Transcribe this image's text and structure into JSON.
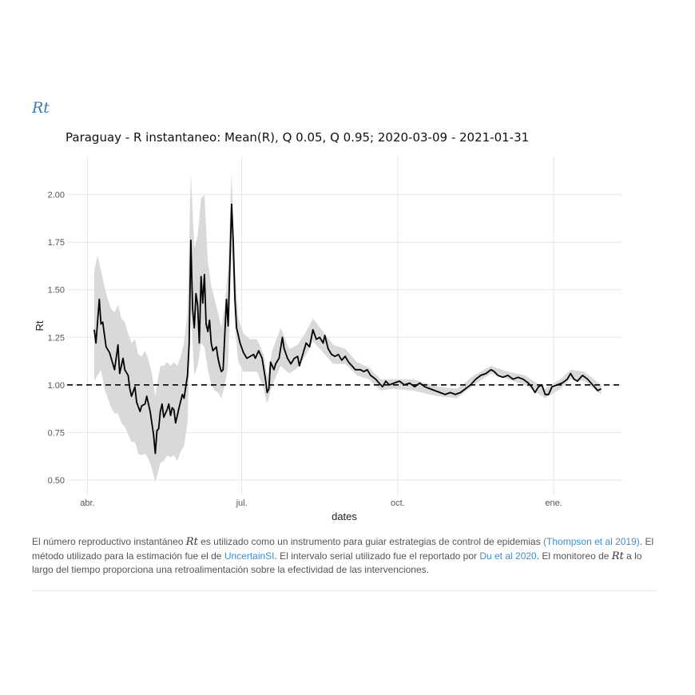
{
  "section_title": "Rt",
  "chart_data": {
    "type": "line",
    "title": "Paraguay - R instantaneo: Mean(R), Q 0.05, Q 0.95;  2020-03-09 - 2021-01-31",
    "xlabel": "dates",
    "ylabel": "Rt",
    "x_range": [
      "2020-03-20",
      "2021-02-10"
    ],
    "ylim": [
      0.42,
      2.2
    ],
    "y_ticks": [
      0.5,
      0.75,
      1.0,
      1.25,
      1.5,
      1.75,
      2.0
    ],
    "y_tick_labels": [
      "0.50",
      "0.75",
      "1.00",
      "1.25",
      "1.50",
      "1.75",
      "2.00"
    ],
    "x_ticks": [
      "2020-04-01",
      "2020-07-01",
      "2020-10-01",
      "2021-01-01"
    ],
    "x_tick_labels": [
      "abr.",
      "jul.",
      "oct.",
      "ene."
    ],
    "reference_line": {
      "y": 1.0,
      "style": "dashed",
      "color": "#000000"
    },
    "grid": true,
    "colors": {
      "line": "#000000",
      "band": "#d9d9d9"
    },
    "series": [
      {
        "role": "mean",
        "points": [
          [
            "2020-04-05",
            1.29
          ],
          [
            "2020-04-06",
            1.22
          ],
          [
            "2020-04-08",
            1.45
          ],
          [
            "2020-04-09",
            1.32
          ],
          [
            "2020-04-10",
            1.33
          ],
          [
            "2020-04-12",
            1.2
          ],
          [
            "2020-04-14",
            1.17
          ],
          [
            "2020-04-15",
            1.14
          ],
          [
            "2020-04-17",
            1.08
          ],
          [
            "2020-04-19",
            1.21
          ],
          [
            "2020-04-20",
            1.06
          ],
          [
            "2020-04-22",
            1.14
          ],
          [
            "2020-04-23",
            1.08
          ],
          [
            "2020-04-25",
            1.05
          ],
          [
            "2020-04-26",
            0.98
          ],
          [
            "2020-04-27",
            0.94
          ],
          [
            "2020-04-29",
            0.99
          ],
          [
            "2020-04-30",
            0.91
          ],
          [
            "2020-05-02",
            0.86
          ],
          [
            "2020-05-03",
            0.89
          ],
          [
            "2020-05-05",
            0.9
          ],
          [
            "2020-05-06",
            0.94
          ],
          [
            "2020-05-08",
            0.86
          ],
          [
            "2020-05-09",
            0.8
          ],
          [
            "2020-05-10",
            0.74
          ],
          [
            "2020-05-11",
            0.64
          ],
          [
            "2020-05-12",
            0.76
          ],
          [
            "2020-05-13",
            0.77
          ],
          [
            "2020-05-14",
            0.86
          ],
          [
            "2020-05-15",
            0.9
          ],
          [
            "2020-05-16",
            0.83
          ],
          [
            "2020-05-18",
            0.87
          ],
          [
            "2020-05-19",
            0.9
          ],
          [
            "2020-05-20",
            0.84
          ],
          [
            "2020-05-21",
            0.88
          ],
          [
            "2020-05-22",
            0.87
          ],
          [
            "2020-05-23",
            0.8
          ],
          [
            "2020-05-24",
            0.84
          ],
          [
            "2020-05-25",
            0.88
          ],
          [
            "2020-05-27",
            0.95
          ],
          [
            "2020-05-28",
            0.93
          ],
          [
            "2020-05-30",
            1.05
          ],
          [
            "2020-05-31",
            1.22
          ],
          [
            "2020-06-01",
            1.76
          ],
          [
            "2020-06-02",
            1.4
          ],
          [
            "2020-06-03",
            1.3
          ],
          [
            "2020-06-04",
            1.48
          ],
          [
            "2020-06-05",
            1.42
          ],
          [
            "2020-06-06",
            1.22
          ],
          [
            "2020-06-07",
            1.57
          ],
          [
            "2020-06-08",
            1.43
          ],
          [
            "2020-06-09",
            1.58
          ],
          [
            "2020-06-10",
            1.32
          ],
          [
            "2020-06-11",
            1.28
          ],
          [
            "2020-06-12",
            1.34
          ],
          [
            "2020-06-13",
            1.22
          ],
          [
            "2020-06-14",
            1.18
          ],
          [
            "2020-06-16",
            1.2
          ],
          [
            "2020-06-17",
            1.14
          ],
          [
            "2020-06-18",
            1.1
          ],
          [
            "2020-06-19",
            1.07
          ],
          [
            "2020-06-20",
            1.08
          ],
          [
            "2020-06-22",
            1.45
          ],
          [
            "2020-06-23",
            1.31
          ],
          [
            "2020-06-24",
            1.62
          ],
          [
            "2020-06-25",
            1.95
          ],
          [
            "2020-06-26",
            1.75
          ],
          [
            "2020-06-27",
            1.45
          ],
          [
            "2020-06-28",
            1.3
          ],
          [
            "2020-06-30",
            1.22
          ],
          [
            "2020-07-02",
            1.17
          ],
          [
            "2020-07-04",
            1.14
          ],
          [
            "2020-07-06",
            1.15
          ],
          [
            "2020-07-08",
            1.16
          ],
          [
            "2020-07-09",
            1.14
          ],
          [
            "2020-07-11",
            1.18
          ],
          [
            "2020-07-13",
            1.14
          ],
          [
            "2020-07-15",
            1.03
          ],
          [
            "2020-07-16",
            0.96
          ],
          [
            "2020-07-17",
            0.98
          ],
          [
            "2020-07-18",
            1.12
          ],
          [
            "2020-07-20",
            1.08
          ],
          [
            "2020-07-21",
            1.11
          ],
          [
            "2020-07-23",
            1.14
          ],
          [
            "2020-07-25",
            1.25
          ],
          [
            "2020-07-26",
            1.19
          ],
          [
            "2020-07-28",
            1.14
          ],
          [
            "2020-07-30",
            1.11
          ],
          [
            "2020-08-01",
            1.14
          ],
          [
            "2020-08-03",
            1.15
          ],
          [
            "2020-08-04",
            1.1
          ],
          [
            "2020-08-06",
            1.16
          ],
          [
            "2020-08-08",
            1.22
          ],
          [
            "2020-08-10",
            1.2
          ],
          [
            "2020-08-12",
            1.29
          ],
          [
            "2020-08-14",
            1.24
          ],
          [
            "2020-08-16",
            1.25
          ],
          [
            "2020-08-18",
            1.22
          ],
          [
            "2020-08-19",
            1.26
          ],
          [
            "2020-08-21",
            1.19
          ],
          [
            "2020-08-23",
            1.16
          ],
          [
            "2020-08-25",
            1.15
          ],
          [
            "2020-08-27",
            1.16
          ],
          [
            "2020-08-29",
            1.13
          ],
          [
            "2020-08-31",
            1.15
          ],
          [
            "2020-09-02",
            1.12
          ],
          [
            "2020-09-04",
            1.1
          ],
          [
            "2020-09-06",
            1.08
          ],
          [
            "2020-09-09",
            1.08
          ],
          [
            "2020-09-11",
            1.07
          ],
          [
            "2020-09-13",
            1.08
          ],
          [
            "2020-09-15",
            1.05
          ],
          [
            "2020-09-18",
            1.03
          ],
          [
            "2020-09-20",
            1.01
          ],
          [
            "2020-09-22",
            0.99
          ],
          [
            "2020-09-24",
            1.02
          ],
          [
            "2020-09-26",
            1.0
          ],
          [
            "2020-09-29",
            1.01
          ],
          [
            "2020-10-02",
            1.02
          ],
          [
            "2020-10-05",
            1.0
          ],
          [
            "2020-10-08",
            1.01
          ],
          [
            "2020-10-11",
            0.99
          ],
          [
            "2020-10-14",
            1.01
          ],
          [
            "2020-10-17",
            0.99
          ],
          [
            "2020-10-20",
            0.98
          ],
          [
            "2020-10-23",
            0.97
          ],
          [
            "2020-10-26",
            0.96
          ],
          [
            "2020-10-29",
            0.95
          ],
          [
            "2020-11-01",
            0.96
          ],
          [
            "2020-11-04",
            0.95
          ],
          [
            "2020-11-07",
            0.96
          ],
          [
            "2020-11-10",
            0.98
          ],
          [
            "2020-11-13",
            1.0
          ],
          [
            "2020-11-16",
            1.03
          ],
          [
            "2020-11-19",
            1.05
          ],
          [
            "2020-11-22",
            1.06
          ],
          [
            "2020-11-25",
            1.08
          ],
          [
            "2020-11-27",
            1.07
          ],
          [
            "2020-11-29",
            1.05
          ],
          [
            "2020-12-02",
            1.04
          ],
          [
            "2020-12-05",
            1.05
          ],
          [
            "2020-12-08",
            1.03
          ],
          [
            "2020-12-11",
            1.04
          ],
          [
            "2020-12-14",
            1.03
          ],
          [
            "2020-12-17",
            1.01
          ],
          [
            "2020-12-19",
            0.99
          ],
          [
            "2020-12-21",
            0.96
          ],
          [
            "2020-12-23",
            0.99
          ],
          [
            "2020-12-25",
            1.0
          ],
          [
            "2020-12-27",
            0.95
          ],
          [
            "2020-12-29",
            0.95
          ],
          [
            "2020-12-31",
            0.99
          ],
          [
            "2021-01-03",
            1.0
          ],
          [
            "2021-01-06",
            1.01
          ],
          [
            "2021-01-09",
            1.03
          ],
          [
            "2021-01-11",
            1.06
          ],
          [
            "2021-01-13",
            1.03
          ],
          [
            "2021-01-15",
            1.02
          ],
          [
            "2021-01-18",
            1.05
          ],
          [
            "2021-01-21",
            1.03
          ],
          [
            "2021-01-24",
            1.0
          ],
          [
            "2021-01-27",
            0.97
          ],
          [
            "2021-01-29",
            0.98
          ]
        ]
      },
      {
        "role": "band",
        "points": [
          [
            "2020-04-05",
            1.02,
            1.6
          ],
          [
            "2020-04-07",
            1.05,
            1.68
          ],
          [
            "2020-04-09",
            1.08,
            1.6
          ],
          [
            "2020-04-11",
            0.98,
            1.52
          ],
          [
            "2020-04-13",
            0.93,
            1.45
          ],
          [
            "2020-04-15",
            0.88,
            1.4
          ],
          [
            "2020-04-17",
            0.85,
            1.38
          ],
          [
            "2020-04-19",
            0.85,
            1.42
          ],
          [
            "2020-04-21",
            0.8,
            1.35
          ],
          [
            "2020-04-23",
            0.78,
            1.33
          ],
          [
            "2020-04-25",
            0.74,
            1.27
          ],
          [
            "2020-04-27",
            0.7,
            1.22
          ],
          [
            "2020-04-29",
            0.7,
            1.24
          ],
          [
            "2020-05-01",
            0.64,
            1.16
          ],
          [
            "2020-05-03",
            0.63,
            1.15
          ],
          [
            "2020-05-05",
            0.64,
            1.18
          ],
          [
            "2020-05-07",
            0.61,
            1.13
          ],
          [
            "2020-05-09",
            0.56,
            1.06
          ],
          [
            "2020-05-11",
            0.49,
            0.94
          ],
          [
            "2020-05-12",
            0.52,
            1.0
          ],
          [
            "2020-05-14",
            0.59,
            1.1
          ],
          [
            "2020-05-16",
            0.6,
            1.1
          ],
          [
            "2020-05-18",
            0.63,
            1.12
          ],
          [
            "2020-05-20",
            0.62,
            1.1
          ],
          [
            "2020-05-22",
            0.63,
            1.12
          ],
          [
            "2020-05-24",
            0.6,
            1.1
          ],
          [
            "2020-05-26",
            0.65,
            1.15
          ],
          [
            "2020-05-28",
            0.68,
            1.22
          ],
          [
            "2020-05-30",
            0.8,
            1.38
          ],
          [
            "2020-06-01",
            1.38,
            2.12
          ],
          [
            "2020-06-03",
            1.05,
            1.72
          ],
          [
            "2020-06-05",
            1.1,
            1.78
          ],
          [
            "2020-06-07",
            1.22,
            1.98
          ],
          [
            "2020-06-09",
            1.2,
            2.0
          ],
          [
            "2020-06-11",
            1.08,
            1.65
          ],
          [
            "2020-06-13",
            1.0,
            1.52
          ],
          [
            "2020-06-15",
            0.97,
            1.45
          ],
          [
            "2020-06-17",
            0.96,
            1.38
          ],
          [
            "2020-06-19",
            0.93,
            1.3
          ],
          [
            "2020-06-21",
            1.0,
            1.42
          ],
          [
            "2020-06-23",
            1.1,
            1.62
          ],
          [
            "2020-06-25",
            1.72,
            2.12
          ],
          [
            "2020-06-27",
            1.3,
            1.62
          ],
          [
            "2020-06-29",
            1.12,
            1.35
          ],
          [
            "2020-07-02",
            1.07,
            1.27
          ],
          [
            "2020-07-06",
            1.07,
            1.24
          ],
          [
            "2020-07-10",
            1.07,
            1.24
          ],
          [
            "2020-07-14",
            0.98,
            1.16
          ],
          [
            "2020-07-16",
            0.9,
            1.04
          ],
          [
            "2020-07-19",
            1.0,
            1.18
          ],
          [
            "2020-07-24",
            1.1,
            1.3
          ],
          [
            "2020-07-29",
            1.06,
            1.19
          ],
          [
            "2020-08-03",
            1.09,
            1.21
          ],
          [
            "2020-08-08",
            1.16,
            1.28
          ],
          [
            "2020-08-12",
            1.23,
            1.35
          ],
          [
            "2020-08-18",
            1.17,
            1.28
          ],
          [
            "2020-08-24",
            1.11,
            1.21
          ],
          [
            "2020-08-31",
            1.11,
            1.19
          ],
          [
            "2020-09-07",
            1.05,
            1.12
          ],
          [
            "2020-09-14",
            1.03,
            1.09
          ],
          [
            "2020-09-21",
            0.97,
            1.03
          ],
          [
            "2020-09-28",
            0.98,
            1.03
          ],
          [
            "2020-10-10",
            0.97,
            1.03
          ],
          [
            "2020-10-25",
            0.94,
            0.99
          ],
          [
            "2020-11-05",
            0.93,
            0.98
          ],
          [
            "2020-11-15",
            1.0,
            1.05
          ],
          [
            "2020-11-25",
            1.06,
            1.1
          ],
          [
            "2020-12-05",
            1.03,
            1.07
          ],
          [
            "2020-12-15",
            1.0,
            1.05
          ],
          [
            "2020-12-27",
            0.93,
            0.98
          ],
          [
            "2021-01-05",
            0.98,
            1.03
          ],
          [
            "2021-01-11",
            1.03,
            1.08
          ],
          [
            "2021-01-19",
            1.02,
            1.07
          ],
          [
            "2021-01-29",
            0.95,
            1.0
          ]
        ]
      }
    ]
  },
  "caption": {
    "part1": "El número reproductivo instantáneo ",
    "math1": "Rt",
    "part2": " es utilizado como un instrumento para guiar estrategias de control de epidemias ",
    "link1": "(Thompson et al 2019)",
    "part3": ". El método utilizado para la estimación fue el de ",
    "link2": "UncertainSI",
    "part4": ". El intervalo serial utilizado fue el reportado por ",
    "link3": "Du et al 2020",
    "part5": ". El monitoreo de ",
    "math2": "Rt",
    "part6": " a lo largo del tiempo proporciona una retroalimentación sobre la efectividad de las intervenciones."
  }
}
